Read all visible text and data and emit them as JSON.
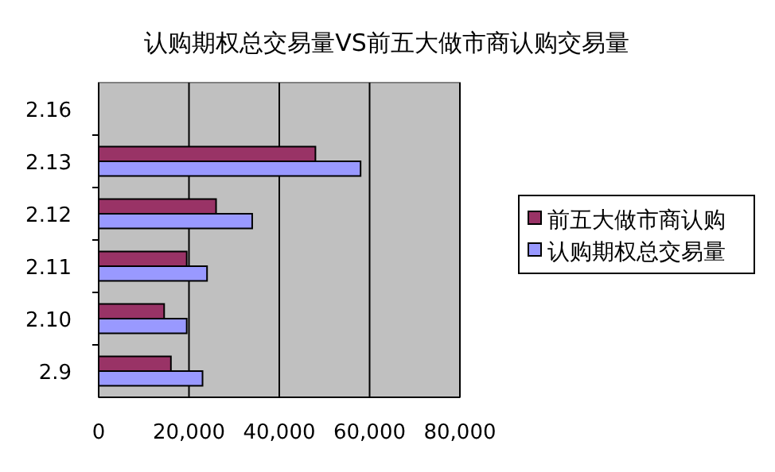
{
  "chart_data": {
    "type": "bar",
    "orientation": "horizontal",
    "title": "认购期权总交易量VS前五大做市商认购交易量",
    "categories": [
      "2.16",
      "2.13",
      "2.12",
      "2.11",
      "2.10",
      "2.9"
    ],
    "series": [
      {
        "name": "前五大做市商认购",
        "color": "#993366",
        "values": [
          null,
          48000,
          26000,
          19500,
          14500,
          16000
        ]
      },
      {
        "name": "认购期权总交易量",
        "color": "#9999ff",
        "values": [
          null,
          58000,
          34000,
          24000,
          19500,
          23000
        ]
      }
    ],
    "xlim": [
      0,
      80000
    ],
    "xticks": [
      {
        "value": 0,
        "label": "0"
      },
      {
        "value": 20000,
        "label": "20,000"
      },
      {
        "value": 40000,
        "label": "40,000"
      },
      {
        "value": 60000,
        "label": "60,000"
      },
      {
        "value": 80000,
        "label": "80,000"
      }
    ],
    "grid": "x",
    "legend": "right"
  }
}
